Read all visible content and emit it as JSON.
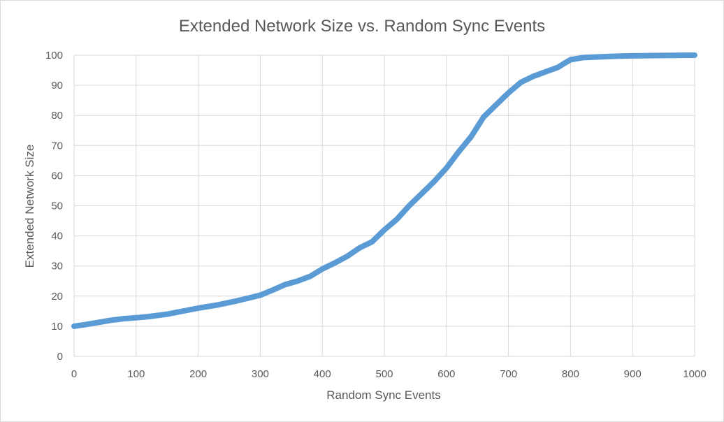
{
  "chart_data": {
    "type": "line",
    "title": "Extended Network Size vs. Random Sync Events",
    "xlabel": "Random Sync Events",
    "ylabel": "Extended Network Size",
    "xlim": [
      0,
      1000
    ],
    "ylim": [
      0,
      100
    ],
    "x_ticks": [
      0,
      100,
      200,
      300,
      400,
      500,
      600,
      700,
      800,
      900,
      1000
    ],
    "y_ticks": [
      0,
      10,
      20,
      30,
      40,
      50,
      60,
      70,
      80,
      90,
      100
    ],
    "grid": true,
    "legend": "none",
    "series": [
      {
        "color": "#5b9bd5",
        "x": [
          0,
          20,
          40,
          60,
          80,
          100,
          120,
          150,
          180,
          200,
          230,
          260,
          300,
          320,
          340,
          360,
          380,
          400,
          420,
          440,
          460,
          480,
          500,
          520,
          540,
          560,
          580,
          600,
          620,
          640,
          660,
          680,
          700,
          720,
          740,
          760,
          780,
          790,
          800,
          820,
          850,
          880,
          900,
          950,
          1000
        ],
        "y": [
          10,
          10.6,
          11.3,
          12,
          12.5,
          12.8,
          13.2,
          14,
          15.2,
          16,
          17,
          18.3,
          20.3,
          22,
          23.8,
          25,
          26.5,
          29,
          31,
          33.2,
          36,
          38,
          42,
          45.5,
          50,
          54,
          58,
          62.5,
          68,
          73,
          79.5,
          83.5,
          87.5,
          91,
          93,
          94.5,
          96,
          97.3,
          98.5,
          99.2,
          99.5,
          99.7,
          99.8,
          99.9,
          100
        ]
      }
    ]
  }
}
